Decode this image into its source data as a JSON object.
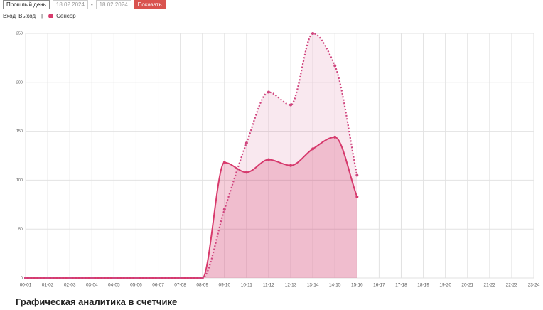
{
  "ui": {
    "period": "Прошлый день",
    "date_from": "18.02.2024",
    "date_sep": "-",
    "date_to": "18.02.2024",
    "button": "Показать",
    "sensor": "Сенсор",
    "caption": "Графическая аналитика в счетчике"
  },
  "chart_data": {
    "type": "line",
    "categories": [
      "00-01",
      "01-02",
      "02-03",
      "03-04",
      "04-05",
      "05-06",
      "06-07",
      "07-08",
      "08-09",
      "09-10",
      "10-11",
      "11-12",
      "12-13",
      "13-14",
      "14-15",
      "15-16",
      "16-17",
      "17-18",
      "18-19",
      "19-20",
      "20-21",
      "21-22",
      "22-23",
      "23-24"
    ],
    "series": [
      {
        "name": "Вход",
        "color": "#d83a6c",
        "values": [
          0,
          0,
          0,
          0,
          0,
          0,
          0,
          0,
          0,
          118,
          108,
          121,
          115,
          132,
          144,
          83,
          null,
          null,
          null,
          null,
          null,
          null,
          null,
          null
        ]
      },
      {
        "name": "Выход",
        "color": "#d0457e",
        "values": [
          0,
          0,
          0,
          0,
          0,
          0,
          0,
          0,
          0,
          70,
          138,
          190,
          177,
          250,
          217,
          105,
          null,
          null,
          null,
          null,
          null,
          null,
          null,
          null
        ]
      }
    ],
    "ylim": [
      0,
      250
    ],
    "yticks": [
      0,
      50,
      100,
      150,
      200,
      250
    ],
    "grid": true
  }
}
